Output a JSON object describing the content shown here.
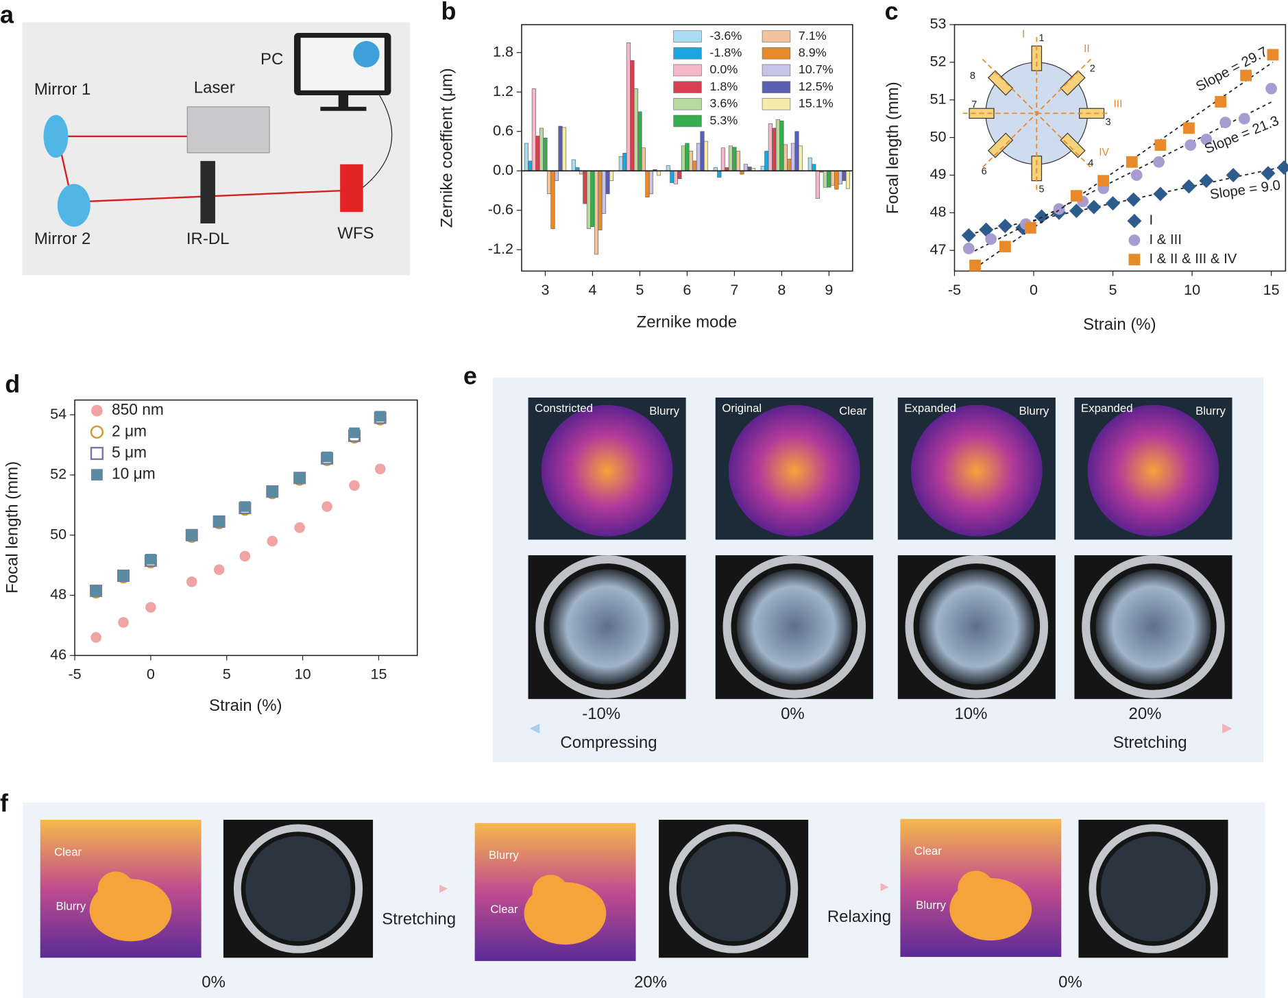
{
  "panel_labels": [
    "a",
    "b",
    "c",
    "d",
    "e",
    "f"
  ],
  "setup": {
    "labels": [
      "Mirror 1",
      "Laser",
      "PC",
      "Mirror 2",
      "IR-DL",
      "WFS"
    ]
  },
  "chart_data": [
    {
      "type": "bar",
      "ylabel": "Zernike coeffient (μm)",
      "xlabel": "Zernike mode",
      "categories": [
        "3",
        "4",
        "5",
        "6",
        "7",
        "8",
        "9"
      ],
      "ylim": [
        -1.525,
        2.225
      ],
      "yticks": [
        -1.2,
        -0.6,
        {
          "value": 0,
          "label": "0.0"
        },
        0.6,
        1.2,
        1.8
      ],
      "legend": "upper right",
      "legend_columns": 2,
      "series": [
        {
          "name": "-3.6%",
          "color": "#a9dcf2",
          "values": [
            0.42,
            0.17,
            0.22,
            0.08,
            0.05,
            0.07,
            0.2
          ]
        },
        {
          "name": "-1.8%",
          "color": "#1ba6df",
          "values": [
            0.15,
            0.05,
            0.27,
            -0.18,
            -0.1,
            0.3,
            0.1
          ]
        },
        {
          "name": "0.0%",
          "color": "#f5b8c9",
          "values": [
            1.25,
            -0.05,
            1.95,
            -0.2,
            0.35,
            0.72,
            -0.42
          ]
        },
        {
          "name": "1.8%",
          "color": "#d8404f",
          "values": [
            0.53,
            -0.5,
            1.68,
            -0.12,
            0.05,
            0.65,
            -0.02
          ]
        },
        {
          "name": "3.6%",
          "color": "#b6daa0",
          "values": [
            0.65,
            -0.88,
            1.25,
            0.38,
            0.38,
            0.78,
            -0.25
          ]
        },
        {
          "name": "5.3%",
          "color": "#36ad4e",
          "values": [
            0.5,
            -0.85,
            0.9,
            0.42,
            0.36,
            0.76,
            -0.25
          ]
        },
        {
          "name": "7.1%",
          "color": "#f2c49b",
          "values": [
            -0.35,
            -1.27,
            0.35,
            0.3,
            0.3,
            0.4,
            -0.22
          ]
        },
        {
          "name": "8.9%",
          "color": "#e8892a",
          "values": [
            -0.88,
            -0.9,
            -0.4,
            0.15,
            -0.05,
            0.18,
            -0.28
          ]
        },
        {
          "name": "10.7%",
          "color": "#c7c4e7",
          "values": [
            -0.15,
            -0.65,
            -0.35,
            0.42,
            0.1,
            0.42,
            -0.2
          ]
        },
        {
          "name": "12.5%",
          "color": "#5a5eb0",
          "values": [
            0.68,
            -0.35,
            0.02,
            0.6,
            0.06,
            0.6,
            -0.15
          ]
        },
        {
          "name": "15.1%",
          "color": "#f6eca9",
          "values": [
            0.66,
            -0.15,
            -0.07,
            0.45,
            0.04,
            0.38,
            -0.27
          ]
        }
      ]
    },
    {
      "type": "scatter",
      "ylabel": "Focal length (mm)",
      "xlabel": "Strain (%)",
      "xlim": [
        -5,
        15.9
      ],
      "xticks": [
        -5,
        0,
        5,
        10,
        15
      ],
      "ylim": [
        46.45,
        53
      ],
      "yticks": [
        47,
        48,
        49,
        50,
        51,
        52,
        53
      ],
      "legend": "lower right",
      "fit": true,
      "annotations": [
        "Slope = 29.7",
        "Slope = 21.3",
        "Slope = 9.0"
      ],
      "inset_labels": [
        "I",
        "II",
        "III",
        "IV",
        "1",
        "2",
        "3",
        "4",
        "5",
        "6",
        "7",
        "8"
      ],
      "series": [
        {
          "name": "I",
          "color": "#2d5b8b",
          "marker": "diamond",
          "filled": true,
          "x": [
            -4.1,
            -3,
            -1.8,
            -0.7,
            0.5,
            1.6,
            2.7,
            3.8,
            5,
            6.3,
            8,
            9.8,
            10.9,
            12.6,
            14.8,
            15.8
          ],
          "values": [
            47.4,
            47.55,
            47.65,
            47.6,
            47.9,
            48,
            48.05,
            48.15,
            48.25,
            48.35,
            48.5,
            48.7,
            48.85,
            49,
            49.05,
            49.2
          ]
        },
        {
          "name": "I & III",
          "color": "#a79bcf",
          "marker": "circle",
          "filled": true,
          "x": [
            -4.1,
            -2.7,
            -0.5,
            1.6,
            3.1,
            4.4,
            6.5,
            7.9,
            9.9,
            10.9,
            12.1,
            13.3,
            15
          ],
          "values": [
            47.05,
            47.3,
            47.7,
            48.1,
            48.3,
            48.65,
            49,
            49.35,
            49.8,
            49.95,
            50.4,
            50.5,
            51.3
          ]
        },
        {
          "name": "I & II & III & IV",
          "color": "#e8892a",
          "marker": "square",
          "filled": true,
          "x": [
            -3.7,
            -1.8,
            -0.2,
            2.7,
            4.4,
            6.2,
            8,
            9.8,
            11.8,
            13.4,
            15.1
          ],
          "values": [
            46.6,
            47.1,
            47.6,
            48.45,
            48.85,
            49.35,
            49.8,
            50.25,
            50.95,
            51.65,
            52.2
          ]
        }
      ]
    },
    {
      "type": "scatter",
      "ylabel": "Focal length (mm)",
      "xlabel": "Strain (%)",
      "xlim": [
        -5,
        17.54
      ],
      "xticks": [
        -5,
        0,
        5,
        10,
        15
      ],
      "ylim": [
        46,
        54.49
      ],
      "yticks": [
        46,
        48,
        50,
        52,
        54
      ],
      "legend": "upper left",
      "series": [
        {
          "name": "850 nm",
          "color": "#f0a3a3",
          "marker": "circle",
          "filled": true,
          "x": [
            -3.6,
            -1.8,
            0,
            2.7,
            4.5,
            6.2,
            8,
            9.8,
            11.6,
            13.4,
            15.1
          ],
          "values": [
            46.6,
            47.1,
            47.6,
            48.45,
            48.85,
            49.3,
            49.8,
            50.25,
            50.95,
            51.65,
            52.2
          ]
        },
        {
          "name": "2 μm",
          "color": "#c99a2e",
          "marker": "circle",
          "filled": false,
          "x": [
            -3.6,
            -1.8,
            0,
            2.7,
            4.5,
            6.2,
            8,
            9.8,
            11.6,
            13.4,
            15.1
          ],
          "values": [
            48.1,
            48.6,
            49.1,
            49.95,
            50.4,
            50.85,
            51.4,
            51.85,
            52.5,
            53.25,
            53.85
          ]
        },
        {
          "name": "5 μm",
          "color": "#76799a",
          "marker": "square",
          "filled": false,
          "x": [
            -3.6,
            -1.8,
            0,
            2.7,
            4.5,
            6.2,
            8,
            9.8,
            11.6,
            13.4,
            15.1
          ],
          "values": [
            48.15,
            48.65,
            49.15,
            50,
            50.45,
            50.9,
            51.45,
            51.9,
            52.55,
            53.3,
            53.9
          ]
        },
        {
          "name": "10 μm",
          "color": "#5a8ba2",
          "marker": "square",
          "filled": true,
          "x": [
            -3.6,
            -1.8,
            0,
            2.7,
            4.5,
            6.2,
            8,
            9.8,
            11.6,
            13.4,
            15.1
          ],
          "values": [
            48.15,
            48.65,
            49.2,
            50,
            50.45,
            50.95,
            51.45,
            51.9,
            52.6,
            53.4,
            53.95
          ]
        }
      ]
    }
  ],
  "imaging": {
    "captions": [
      [
        "Constricted",
        "Blurry"
      ],
      [
        "Original",
        "Clear"
      ],
      [
        "Expanded",
        "Blurry"
      ],
      [
        "Expanded",
        "Blurry"
      ]
    ],
    "strains": [
      "-10%",
      "0%",
      "10%",
      "20%"
    ],
    "arrow_labels": [
      "Compressing",
      "Stretching"
    ]
  },
  "demo": {
    "captions": [
      [
        "Clear",
        "Blurry"
      ],
      [
        "Blurry",
        "Clear"
      ],
      [
        "Clear",
        "Blurry"
      ]
    ],
    "actions": [
      "Stretching",
      "Relaxing"
    ],
    "strains": [
      "0%",
      "20%",
      "0%"
    ]
  }
}
